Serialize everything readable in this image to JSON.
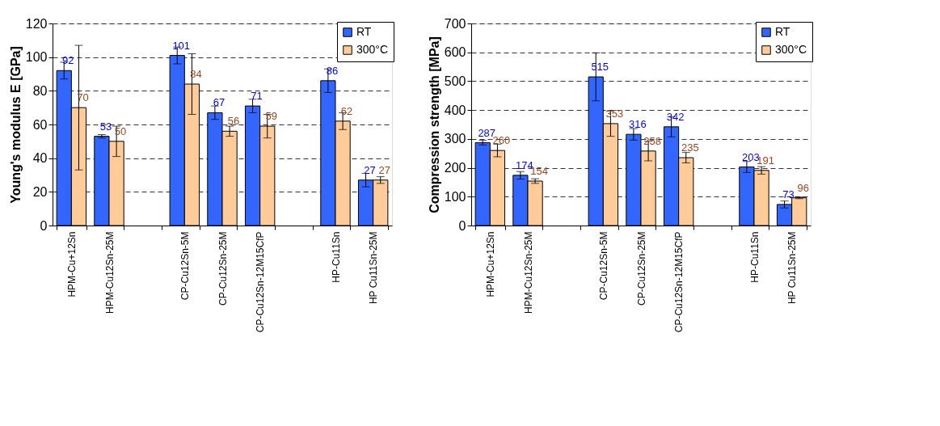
{
  "chart_data": [
    {
      "type": "bar",
      "ylabel": "Young's modulus E [GPa]",
      "categories": [
        "HPM-Cu+12Sn",
        "HPM-Cu12Sn-25M",
        null,
        "CP-Cu12Sn-5M",
        "CP-Cu12Sn-25M",
        "CP-Cu12Sn-12M15CfP",
        null,
        "HP-Cu11Sn",
        "HP Cu11Sn-25M"
      ],
      "series": [
        {
          "name": "RT",
          "color": "#3366ff",
          "values": [
            92,
            53,
            null,
            101,
            67,
            71,
            null,
            86,
            27
          ],
          "errors": [
            5,
            1,
            null,
            5,
            4,
            4,
            null,
            7,
            4
          ]
        },
        {
          "name": "300°C",
          "color": "#ffcc99",
          "values": [
            70,
            50,
            null,
            84,
            56,
            59,
            null,
            62,
            27
          ],
          "errors": [
            37,
            9,
            null,
            18,
            3,
            7,
            null,
            5,
            2
          ]
        }
      ],
      "ylim": [
        0,
        120
      ],
      "yticks": [
        0,
        20,
        40,
        60,
        80,
        100,
        120
      ],
      "grid": "y",
      "legend": "top right",
      "data_labels": true
    },
    {
      "type": "bar",
      "ylabel": "Compression strength [MPa]",
      "categories": [
        "HPM-Cu+12Sn",
        "HPM-Cu12Sn-25M",
        null,
        "CP-Cu12Sn-5M",
        "CP-Cu12Sn-25M",
        "CP-Cu12Sn-12M15CfP",
        null,
        "HP-Cu11Sn",
        "HP Cu11Sn-25M"
      ],
      "series": [
        {
          "name": "RT",
          "color": "#3366ff",
          "values": [
            287,
            174,
            null,
            515,
            316,
            342,
            null,
            203,
            73
          ],
          "errors": [
            8,
            13,
            null,
            83,
            20,
            35,
            null,
            19,
            12
          ]
        },
        {
          "name": "300°C",
          "color": "#ffcc99",
          "values": [
            260,
            154,
            null,
            353,
            258,
            235,
            null,
            191,
            96
          ],
          "errors": [
            22,
            8,
            null,
            44,
            34,
            18,
            null,
            13,
            3
          ]
        }
      ],
      "ylim": [
        0,
        700
      ],
      "yticks": [
        0,
        100,
        200,
        300,
        400,
        500,
        600,
        700
      ],
      "grid": "y",
      "legend": "top right",
      "data_labels": true
    }
  ]
}
